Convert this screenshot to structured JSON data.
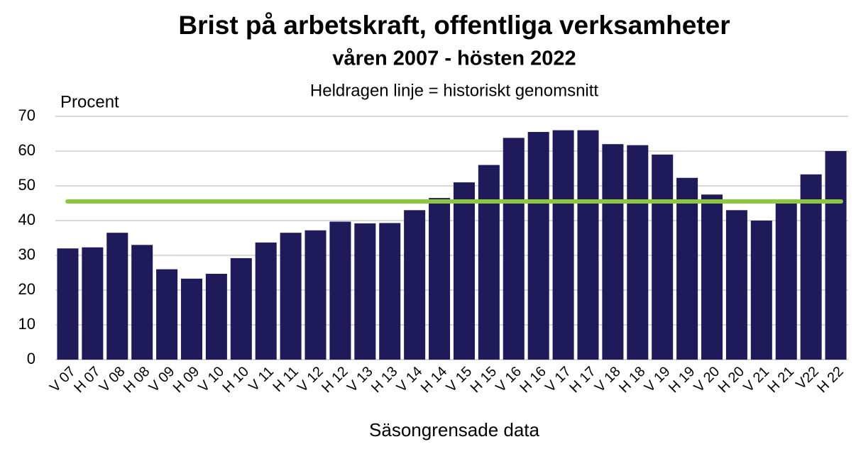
{
  "chart_data": {
    "type": "bar",
    "title": "Brist på arbetskraft, offentliga verksamheter",
    "subtitle": "våren 2007 - hösten 2022",
    "annotation": "Heldragen linje = historiskt genomsnitt",
    "y_label": "Procent",
    "x_label": "Säsongrensade data",
    "categories": [
      "V 07",
      "H 07",
      "V 08",
      "H 08",
      "V 09",
      "H 09",
      "V 10",
      "H 10",
      "V 11",
      "H 11",
      "V 12",
      "H 12",
      "V 13",
      "H 13",
      "V 14",
      "H 14",
      "V 15",
      "H 15",
      "V 16",
      "H 16",
      "V 17",
      "H 17",
      "V 18",
      "H 18",
      "V 19",
      "H 19",
      "V 20",
      "H 20",
      "V 21",
      "H 21",
      "V22",
      "H 22"
    ],
    "values": [
      32,
      32.3,
      36.5,
      33,
      26,
      23.3,
      24.7,
      29.2,
      33.7,
      36.5,
      37.2,
      39.7,
      39.2,
      39.3,
      43,
      46.5,
      51,
      56,
      63.8,
      65.5,
      66,
      66,
      62,
      61.7,
      59,
      52.3,
      47.5,
      43,
      40,
      45.2,
      53.3,
      60
    ],
    "color": "#1f1b5a",
    "reference_line": {
      "value": 45.5,
      "color": "#8dc63f"
    },
    "ylim": [
      0,
      70
    ],
    "yticks": [
      0,
      10,
      20,
      30,
      40,
      50,
      60,
      70
    ],
    "grid": true
  }
}
